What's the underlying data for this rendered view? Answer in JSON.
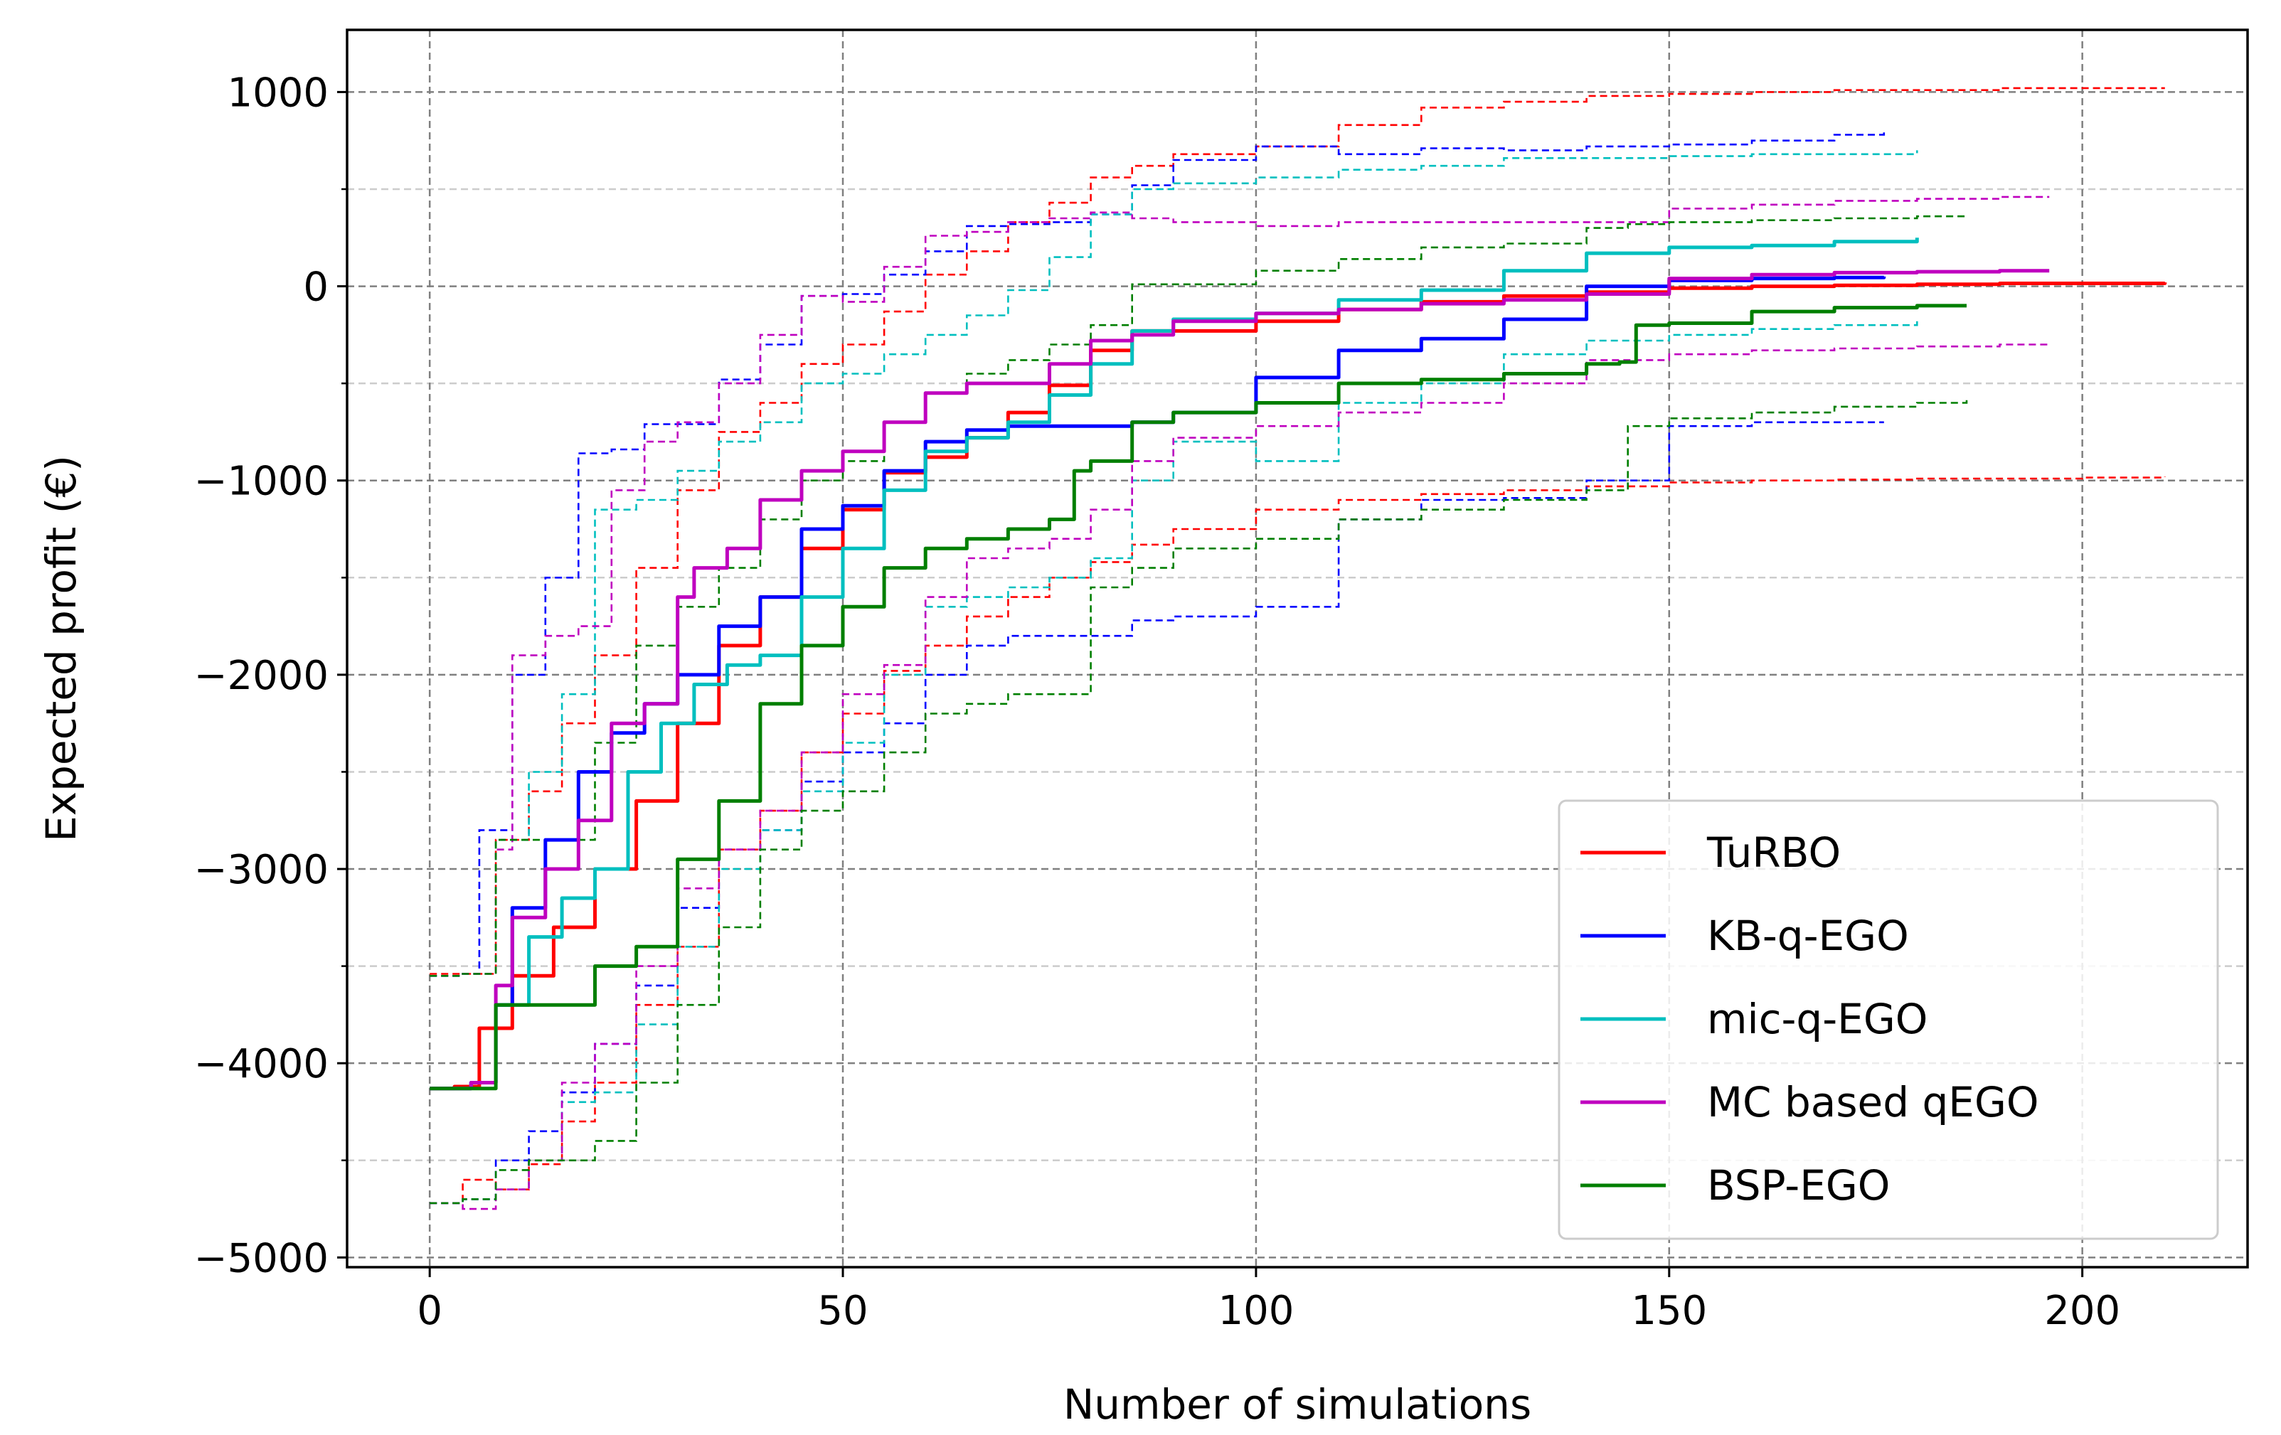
{
  "chart_data": {
    "type": "line",
    "title": "",
    "xlabel": "Number of simulations",
    "ylabel": "Expected profit (€)",
    "xlim": [
      -10,
      220
    ],
    "ylim": [
      -5050,
      1320
    ],
    "xticks": [
      0,
      50,
      100,
      150,
      200
    ],
    "yticks": [
      -5000,
      -4000,
      -3000,
      -2000,
      -1000,
      0,
      1000
    ],
    "xtick_labels": [
      "0",
      "50",
      "100",
      "150",
      "200"
    ],
    "ytick_labels": [
      "−5000",
      "−4000",
      "−3000",
      "−2000",
      "−1000",
      "0",
      "1000"
    ],
    "grid": true,
    "legend_position": "lower right",
    "series": [
      {
        "name": "TuRBO",
        "color": "#ff0000",
        "mean": {
          "x": [
            0,
            3,
            6,
            10,
            15,
            20,
            25,
            30,
            35,
            40,
            45,
            50,
            55,
            60,
            65,
            70,
            75,
            80,
            85,
            90,
            100,
            110,
            120,
            130,
            140,
            150,
            160,
            170,
            180,
            190,
            200,
            210
          ],
          "y": [
            -4130,
            -4120,
            -3820,
            -3550,
            -3300,
            -3000,
            -2650,
            -2250,
            -1850,
            -1600,
            -1350,
            -1150,
            -960,
            -880,
            -780,
            -650,
            -510,
            -330,
            -230,
            -230,
            -180,
            -120,
            -80,
            -50,
            -30,
            -10,
            0,
            5,
            10,
            15,
            15,
            20
          ]
        },
        "upper": {
          "x": [
            0,
            4,
            8,
            12,
            16,
            20,
            25,
            30,
            35,
            40,
            45,
            50,
            55,
            60,
            65,
            70,
            75,
            80,
            85,
            90,
            100,
            110,
            120,
            130,
            140,
            150,
            160,
            170,
            180,
            190,
            200,
            210
          ],
          "y": [
            -3540,
            -3540,
            -2850,
            -2600,
            -2250,
            -1900,
            -1450,
            -1050,
            -750,
            -600,
            -400,
            -300,
            -130,
            60,
            180,
            330,
            430,
            560,
            620,
            680,
            720,
            830,
            920,
            950,
            980,
            990,
            1000,
            1010,
            1010,
            1020,
            1020,
            1020
          ]
        },
        "lower": {
          "x": [
            0,
            4,
            8,
            12,
            16,
            20,
            25,
            30,
            35,
            40,
            45,
            50,
            55,
            60,
            65,
            70,
            75,
            80,
            85,
            90,
            100,
            110,
            120,
            130,
            140,
            150,
            160,
            170,
            180,
            190,
            200,
            210
          ],
          "y": [
            -4720,
            -4600,
            -4650,
            -4520,
            -4300,
            -4100,
            -3700,
            -3400,
            -2900,
            -2700,
            -2400,
            -2200,
            -1980,
            -1850,
            -1700,
            -1600,
            -1500,
            -1420,
            -1330,
            -1250,
            -1150,
            -1100,
            -1070,
            -1050,
            -1030,
            -1010,
            -1000,
            -995,
            -990,
            -990,
            -985,
            -980
          ]
        }
      },
      {
        "name": "KB-q-EGO",
        "color": "#0000ff",
        "mean": {
          "x": [
            0,
            5,
            8,
            10,
            14,
            18,
            22,
            26,
            30,
            35,
            40,
            45,
            50,
            55,
            60,
            65,
            70,
            75,
            80,
            85,
            90,
            100,
            110,
            120,
            130,
            140,
            150,
            160,
            170,
            176
          ],
          "y": [
            -4130,
            -4100,
            -3700,
            -3200,
            -2850,
            -2500,
            -2300,
            -2150,
            -2000,
            -1750,
            -1600,
            -1250,
            -1130,
            -950,
            -800,
            -740,
            -720,
            -720,
            -720,
            -700,
            -650,
            -470,
            -330,
            -270,
            -170,
            0,
            30,
            40,
            45,
            50
          ]
        },
        "upper": {
          "x": [
            0,
            4,
            6,
            10,
            14,
            18,
            22,
            26,
            30,
            35,
            40,
            45,
            50,
            55,
            60,
            65,
            70,
            75,
            80,
            85,
            90,
            100,
            110,
            120,
            130,
            140,
            150,
            160,
            170,
            176
          ],
          "y": [
            -3550,
            -3540,
            -2800,
            -2000,
            -1500,
            -860,
            -840,
            -710,
            -710,
            -480,
            -300,
            -50,
            -40,
            60,
            180,
            310,
            320,
            330,
            370,
            520,
            650,
            720,
            680,
            710,
            700,
            720,
            730,
            750,
            780,
            800
          ]
        },
        "lower": {
          "x": [
            0,
            4,
            8,
            12,
            16,
            20,
            25,
            30,
            35,
            40,
            45,
            50,
            55,
            60,
            65,
            70,
            75,
            80,
            85,
            90,
            100,
            110,
            120,
            130,
            140,
            150,
            160,
            170,
            176
          ],
          "y": [
            -4720,
            -4700,
            -4500,
            -4350,
            -4150,
            -3900,
            -3600,
            -3200,
            -2900,
            -2800,
            -2550,
            -2400,
            -2250,
            -2000,
            -1850,
            -1800,
            -1800,
            -1800,
            -1720,
            -1700,
            -1650,
            -1200,
            -1100,
            -1090,
            -1000,
            -720,
            -700,
            -700,
            -700
          ]
        }
      },
      {
        "name": "mic-q-EGO",
        "color": "#00bfbf",
        "mean": {
          "x": [
            0,
            5,
            8,
            12,
            16,
            20,
            24,
            28,
            32,
            36,
            40,
            45,
            50,
            55,
            60,
            65,
            70,
            75,
            80,
            85,
            90,
            100,
            110,
            120,
            130,
            140,
            150,
            160,
            170,
            180
          ],
          "y": [
            -4130,
            -4100,
            -3700,
            -3350,
            -3150,
            -3000,
            -2500,
            -2250,
            -2050,
            -1950,
            -1900,
            -1600,
            -1350,
            -1050,
            -850,
            -780,
            -700,
            -560,
            -400,
            -230,
            -170,
            -140,
            -70,
            -20,
            80,
            170,
            200,
            210,
            230,
            250
          ]
        },
        "upper": {
          "x": [
            0,
            4,
            8,
            12,
            16,
            20,
            25,
            30,
            35,
            40,
            45,
            50,
            55,
            60,
            65,
            70,
            75,
            80,
            85,
            90,
            100,
            110,
            120,
            130,
            140,
            150,
            160,
            170,
            180
          ],
          "y": [
            -3550,
            -3540,
            -2850,
            -2500,
            -2100,
            -1150,
            -1100,
            -950,
            -800,
            -700,
            -500,
            -450,
            -350,
            -250,
            -150,
            -20,
            150,
            370,
            500,
            530,
            560,
            600,
            620,
            660,
            660,
            670,
            680,
            680,
            700
          ]
        },
        "lower": {
          "x": [
            0,
            4,
            8,
            12,
            16,
            20,
            25,
            30,
            35,
            40,
            45,
            50,
            55,
            60,
            65,
            70,
            75,
            80,
            85,
            90,
            100,
            110,
            120,
            130,
            140,
            150,
            160,
            170,
            180
          ],
          "y": [
            -4720,
            -4700,
            -4650,
            -4500,
            -4200,
            -4150,
            -3800,
            -3400,
            -3000,
            -2800,
            -2600,
            -2350,
            -2000,
            -1650,
            -1600,
            -1550,
            -1500,
            -1400,
            -1000,
            -800,
            -900,
            -600,
            -500,
            -350,
            -280,
            -250,
            -220,
            -200,
            -180
          ]
        }
      },
      {
        "name": "MC based qEGO",
        "color": "#bf00bf",
        "mean": {
          "x": [
            0,
            5,
            8,
            10,
            14,
            18,
            22,
            26,
            30,
            32,
            36,
            40,
            45,
            50,
            55,
            60,
            65,
            70,
            75,
            80,
            85,
            90,
            100,
            110,
            120,
            130,
            140,
            150,
            160,
            170,
            180,
            190,
            196
          ],
          "y": [
            -4130,
            -4100,
            -3600,
            -3250,
            -3000,
            -2750,
            -2250,
            -2150,
            -1600,
            -1450,
            -1350,
            -1100,
            -950,
            -850,
            -700,
            -550,
            -500,
            -500,
            -400,
            -280,
            -250,
            -180,
            -140,
            -120,
            -90,
            -70,
            -40,
            40,
            60,
            70,
            75,
            80,
            80
          ]
        },
        "upper": {
          "x": [
            0,
            4,
            8,
            10,
            14,
            18,
            22,
            26,
            30,
            35,
            40,
            45,
            50,
            55,
            60,
            65,
            70,
            75,
            80,
            85,
            90,
            100,
            110,
            120,
            130,
            140,
            150,
            160,
            170,
            180,
            190,
            196
          ],
          "y": [
            -3550,
            -3540,
            -2900,
            -1900,
            -1800,
            -1750,
            -1050,
            -800,
            -700,
            -500,
            -250,
            -50,
            -80,
            100,
            260,
            280,
            330,
            350,
            380,
            350,
            330,
            310,
            330,
            330,
            330,
            330,
            400,
            420,
            440,
            450,
            460,
            460
          ]
        },
        "lower": {
          "x": [
            0,
            4,
            8,
            12,
            16,
            20,
            25,
            30,
            35,
            40,
            45,
            50,
            55,
            60,
            65,
            70,
            75,
            80,
            85,
            90,
            100,
            110,
            120,
            130,
            140,
            150,
            160,
            170,
            180,
            190,
            196
          ],
          "y": [
            -4720,
            -4750,
            -4650,
            -4500,
            -4100,
            -3900,
            -3500,
            -3100,
            -2900,
            -2700,
            -2400,
            -2100,
            -1950,
            -1600,
            -1400,
            -1350,
            -1300,
            -1150,
            -900,
            -780,
            -720,
            -650,
            -600,
            -500,
            -380,
            -350,
            -330,
            -320,
            -310,
            -300,
            -300
          ]
        }
      },
      {
        "name": "BSP-EGO",
        "color": "#007f00",
        "mean": {
          "x": [
            0,
            5,
            8,
            12,
            16,
            20,
            25,
            30,
            35,
            40,
            45,
            50,
            55,
            60,
            65,
            70,
            75,
            78,
            80,
            85,
            90,
            100,
            110,
            120,
            130,
            140,
            144,
            146,
            150,
            160,
            170,
            180,
            186
          ],
          "y": [
            -4130,
            -4130,
            -3700,
            -3700,
            -3700,
            -3500,
            -3400,
            -2950,
            -2650,
            -2150,
            -1850,
            -1650,
            -1450,
            -1350,
            -1300,
            -1250,
            -1200,
            -950,
            -900,
            -700,
            -650,
            -600,
            -500,
            -480,
            -450,
            -400,
            -390,
            -200,
            -190,
            -130,
            -110,
            -100,
            -100
          ]
        },
        "upper": {
          "x": [
            0,
            4,
            8,
            12,
            16,
            20,
            25,
            30,
            35,
            40,
            45,
            50,
            55,
            60,
            65,
            70,
            75,
            80,
            85,
            90,
            100,
            110,
            120,
            130,
            140,
            145,
            150,
            160,
            170,
            180,
            186
          ],
          "y": [
            -3550,
            -3540,
            -2850,
            -2850,
            -2850,
            -2350,
            -1850,
            -1650,
            -1450,
            -1200,
            -1000,
            -900,
            -700,
            -550,
            -450,
            -380,
            -300,
            -200,
            10,
            10,
            80,
            140,
            200,
            220,
            300,
            320,
            330,
            340,
            350,
            360,
            360
          ]
        },
        "lower": {
          "x": [
            0,
            4,
            8,
            12,
            16,
            20,
            25,
            30,
            35,
            40,
            45,
            50,
            55,
            60,
            65,
            70,
            75,
            80,
            85,
            90,
            100,
            110,
            120,
            130,
            140,
            145,
            150,
            160,
            170,
            180,
            186
          ],
          "y": [
            -4720,
            -4700,
            -4550,
            -4500,
            -4500,
            -4400,
            -4100,
            -3700,
            -3300,
            -2900,
            -2700,
            -2600,
            -2400,
            -2200,
            -2150,
            -2100,
            -2100,
            -1550,
            -1450,
            -1350,
            -1300,
            -1200,
            -1150,
            -1100,
            -1050,
            -720,
            -680,
            -650,
            -620,
            -600,
            -580
          ]
        }
      }
    ]
  }
}
